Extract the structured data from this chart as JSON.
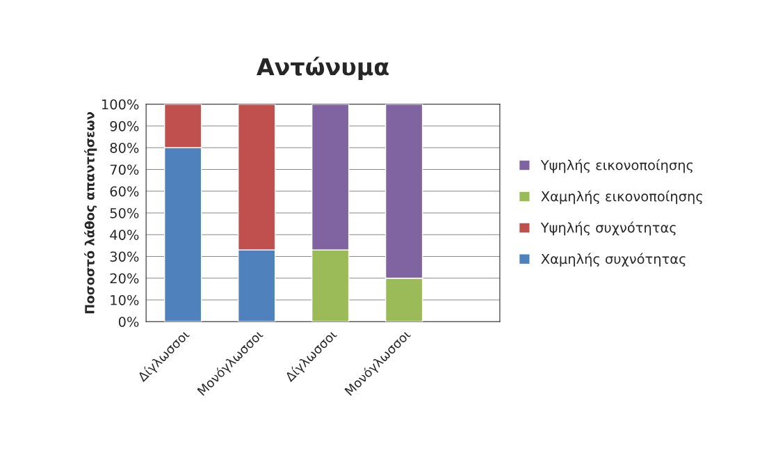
{
  "chart_data": {
    "type": "bar",
    "title": "Αντώνυμα",
    "ylabel": "Ποσοστό λάθος απαντήσεων",
    "categories": [
      "Δίγλωσσοι",
      "Μονόγλωσσοι",
      "Δίγλωσσοι",
      "Μονόγλωσσοι"
    ],
    "stacked": true,
    "series": [
      {
        "name": "Χαμηλής συχνότητας",
        "color": "#4f81bd",
        "values": [
          80,
          33,
          null,
          null
        ]
      },
      {
        "name": "Υψηλής συχνότητας",
        "color": "#c0504d",
        "values": [
          20,
          67,
          null,
          null
        ]
      },
      {
        "name": "Χαμηλής εικονοποίησης",
        "color": "#9bbb59",
        "values": [
          null,
          null,
          33,
          20
        ]
      },
      {
        "name": "Υψηλής εικονοποίησης",
        "color": "#8064a2",
        "values": [
          null,
          null,
          67,
          80
        ]
      }
    ],
    "ylim": [
      0,
      100
    ],
    "yticks": [
      {
        "value": 0,
        "label": "0%"
      },
      {
        "value": 10,
        "label": "10%"
      },
      {
        "value": 20,
        "label": "20%"
      },
      {
        "value": 30,
        "label": "30%"
      },
      {
        "value": 40,
        "label": "40%"
      },
      {
        "value": 50,
        "label": "50%"
      },
      {
        "value": 60,
        "label": "60%"
      },
      {
        "value": 70,
        "label": "70%"
      },
      {
        "value": 80,
        "label": "80%"
      },
      {
        "value": 90,
        "label": "90%"
      },
      {
        "value": 100,
        "label": "100%"
      }
    ],
    "grid": "y",
    "legend": "right"
  }
}
